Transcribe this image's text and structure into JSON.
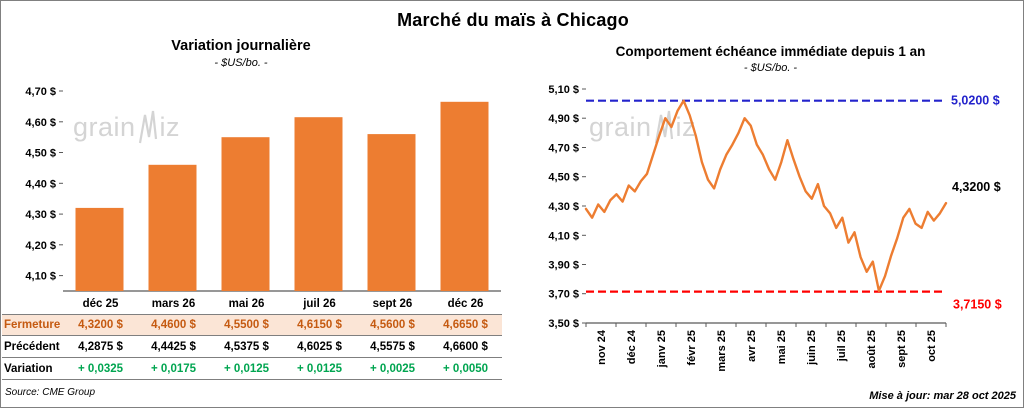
{
  "page": {
    "title": "Marché du maïs à Chicago",
    "source": "Source: CME Group",
    "updated": "Mise à jour: mar 28 oct 2025",
    "watermark_left": "grain",
    "watermark_right": "iz"
  },
  "colors": {
    "orange": "#ED7D31",
    "fermeture_bg": "#FBE5D6",
    "fermeture_text": "#C55A11",
    "variation_green": "#00A550",
    "resistance_blue": "#2323CC",
    "support_red": "#FF0000"
  },
  "chart_data": [
    {
      "type": "bar",
      "title": "Variation journalière",
      "subtitle": "- $US/bo. -",
      "categories": [
        "déc 25",
        "mars 26",
        "mai 26",
        "juil 26",
        "sept 26",
        "déc 26"
      ],
      "values": [
        4.32,
        4.46,
        4.55,
        4.615,
        4.56,
        4.665
      ],
      "ylabel": "$US/bo.",
      "ylim": [
        4.05,
        4.7
      ],
      "yticks": [
        4.1,
        4.2,
        4.3,
        4.4,
        4.5,
        4.6,
        4.7
      ],
      "ytick_labels": [
        "4,10 $",
        "4,20 $",
        "4,30 $",
        "4,40 $",
        "4,50 $",
        "4,60 $",
        "4,70 $"
      ],
      "bar_color": "#ED7D31",
      "grid": false,
      "legend": false
    },
    {
      "type": "line",
      "title": "Comportement échéance immédiate depuis 1 an",
      "subtitle": "- $US/bo. -",
      "x_labels": [
        "nov 24",
        "déc 24",
        "janv 25",
        "févr 25",
        "mars 25",
        "avr 25",
        "mai 25",
        "juin 25",
        "juil 25",
        "août 25",
        "sept 25",
        "oct 25"
      ],
      "values": [
        4.28,
        4.22,
        4.31,
        4.26,
        4.34,
        4.38,
        4.33,
        4.44,
        4.4,
        4.47,
        4.52,
        4.65,
        4.78,
        4.9,
        4.84,
        4.95,
        5.02,
        4.92,
        4.78,
        4.6,
        4.48,
        4.42,
        4.55,
        4.65,
        4.72,
        4.8,
        4.9,
        4.85,
        4.72,
        4.65,
        4.55,
        4.48,
        4.6,
        4.75,
        4.62,
        4.5,
        4.4,
        4.35,
        4.45,
        4.3,
        4.25,
        4.15,
        4.22,
        4.05,
        4.12,
        3.95,
        3.85,
        3.92,
        3.72,
        3.82,
        3.96,
        4.08,
        4.22,
        4.28,
        4.18,
        4.15,
        4.26,
        4.2,
        4.25,
        4.32
      ],
      "ylim": [
        3.5,
        5.1
      ],
      "yticks": [
        3.5,
        3.7,
        3.9,
        4.1,
        4.3,
        4.5,
        4.7,
        4.9,
        5.1
      ],
      "ytick_labels": [
        "3,50 $",
        "3,70 $",
        "3,90 $",
        "4,10 $",
        "4,30 $",
        "4,50 $",
        "4,70 $",
        "4,90 $",
        "5,10 $"
      ],
      "line_color": "#ED7D31",
      "ref_lines": [
        {
          "value": 5.02,
          "label": "5,0200 $",
          "color": "#2323CC",
          "style": "dashed"
        },
        {
          "value": 3.715,
          "label": "3,7150 $",
          "color": "#FF0000",
          "style": "dashed"
        }
      ],
      "last_point_label": "4,3200 $",
      "grid": false,
      "legend": false
    }
  ],
  "table": {
    "columns": [
      "déc 25",
      "mars 26",
      "mai 26",
      "juil 26",
      "sept 26",
      "déc 26"
    ],
    "rows": [
      {
        "label": "Fermeture",
        "values": [
          "4,3200 $",
          "4,4600 $",
          "4,5500 $",
          "4,6150 $",
          "4,5600 $",
          "4,6650 $"
        ]
      },
      {
        "label": "Précédent",
        "values": [
          "4,2875 $",
          "4,4425 $",
          "4,5375 $",
          "4,6025 $",
          "4,5575 $",
          "4,6600 $"
        ]
      },
      {
        "label": "Variation",
        "values": [
          "+ 0,0325",
          "+ 0,0175",
          "+ 0,0125",
          "+ 0,0125",
          "+ 0,0025",
          "+ 0,0050"
        ]
      }
    ]
  }
}
